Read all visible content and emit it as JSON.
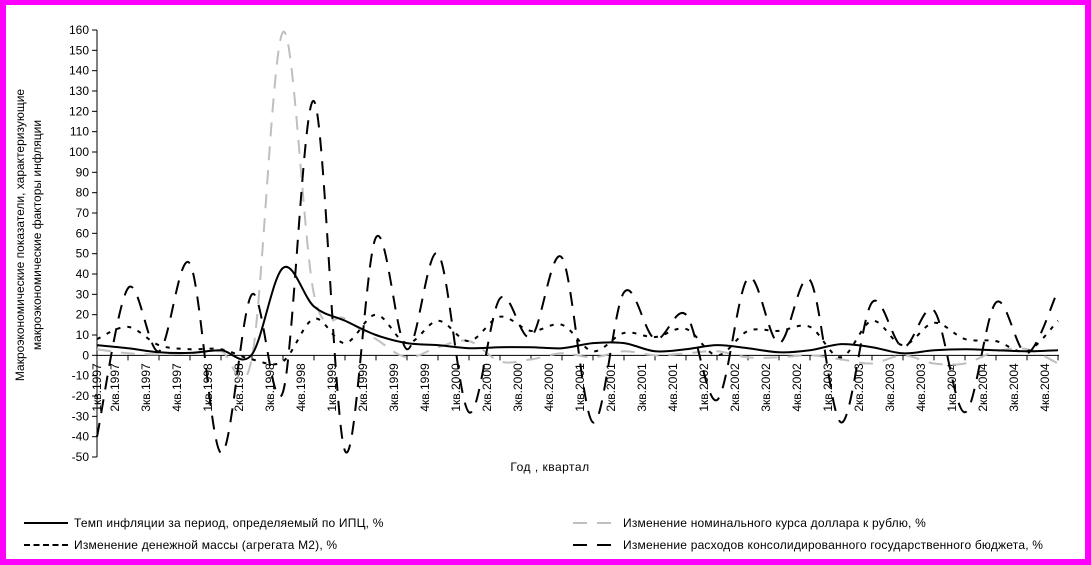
{
  "chart_data": {
    "type": "line",
    "title": "",
    "xlabel": "Год , квартал",
    "ylabel_lines": [
      "Макроэкономические показатели, характеризующие",
      "макроэкономические факторы инфляции"
    ],
    "ylim": [
      -50,
      160
    ],
    "ytick_step": 10,
    "grid": false,
    "legend_position": "bottom",
    "categories": [
      "1кв.1997",
      "2кв.1997",
      "3кв.1997",
      "4кв.1997",
      "1кв.1998",
      "2кв.1998",
      "3кв.1998",
      "4кв.1998",
      "1кв.1999",
      "2кв.1999",
      "3кв.1999",
      "4кв.1999",
      "1кв.2000",
      "2кв.2000",
      "3кв.2000",
      "4кв.2000",
      "1кв.2001",
      "2кв.2001",
      "3кв.2001",
      "4кв.2001",
      "1кв.2002",
      "2кв.2002",
      "3кв.2002",
      "4кв.2002",
      "1кв.2003",
      "2кв.2003",
      "3кв.2003",
      "4кв.2003",
      "1кв.2004",
      "2кв.2004",
      "3кв.2004",
      "4кв.2004"
    ],
    "series": [
      {
        "name": "Темп инфляции за период, определяемый по ИПЦ, %",
        "color": "#000000",
        "style": "solid",
        "values": [
          5,
          3.5,
          1.5,
          1.2,
          2.5,
          0.5,
          43,
          24,
          17,
          10,
          6,
          5,
          3.5,
          4,
          4,
          3.5,
          6,
          6,
          2,
          3,
          5,
          3.5,
          1.5,
          2.5,
          5.5,
          4,
          1,
          2.5,
          3,
          2.5,
          2,
          2.5
        ]
      },
      {
        "name": "Изменение денежной массы (агрегата М2), %",
        "color": "#000000",
        "style": "short-dash",
        "values": [
          8,
          14,
          5,
          3,
          3,
          -2,
          -3,
          18,
          6,
          20,
          6,
          17,
          7,
          19,
          12,
          15,
          2,
          11,
          9,
          13,
          0,
          12,
          12,
          14,
          -1,
          17,
          5,
          16,
          8,
          7,
          2,
          17
        ]
      },
      {
        "name": "Изменение номинального курса доллара к рублю, %",
        "color": "#bfbfbf",
        "style": "long-dash",
        "values": [
          3,
          1,
          0.5,
          1,
          2,
          -1,
          159,
          30,
          18,
          8,
          -1,
          4,
          7,
          -3,
          -2,
          1,
          -1,
          2,
          0,
          1,
          2,
          -1,
          -1,
          0,
          -2,
          -4,
          0,
          -4,
          -4,
          2,
          3,
          -4
        ]
      },
      {
        "name": "Изменение расходов консолидированного государственного бюджета, %",
        "color": "#000000",
        "style": "long-dash",
        "values": [
          -40,
          33,
          2,
          45,
          -48,
          30,
          -18,
          125,
          -47,
          58,
          3,
          50,
          -28,
          28,
          9,
          48,
          -33,
          31,
          8,
          20,
          -22,
          38,
          6,
          37,
          -33,
          26,
          4,
          22,
          -28,
          26,
          1,
          32
        ]
      }
    ]
  }
}
